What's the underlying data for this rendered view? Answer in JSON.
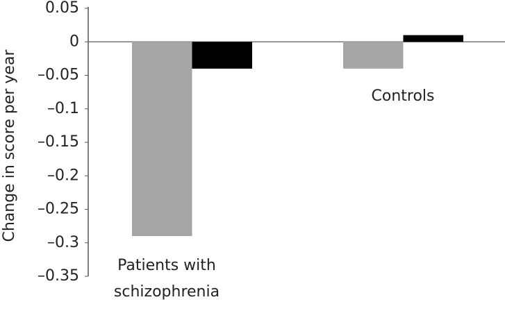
{
  "chart_data": {
    "type": "bar",
    "y_label": "Change in score per year",
    "categories": [
      "Patients with schizophrenia",
      "Controls"
    ],
    "series": [
      {
        "color": "#a6a6a6",
        "values": [
          -0.29,
          -0.04
        ]
      },
      {
        "color": "#000000",
        "values": [
          -0.04,
          0.01
        ]
      }
    ],
    "ylim": [
      -0.35,
      0.05
    ],
    "yticks": [
      0.05,
      0,
      {
        "value": -0.05,
        "label": "–0.05"
      },
      {
        "value": -0.1,
        "label": "–0.1"
      },
      {
        "value": -0.15,
        "label": "–0.15"
      },
      {
        "value": -0.2,
        "label": "–0.2"
      },
      {
        "value": -0.25,
        "label": "–0.25"
      },
      {
        "value": -0.3,
        "label": "–0.3"
      },
      {
        "value": -0.35,
        "label": "–0.35"
      }
    ]
  }
}
